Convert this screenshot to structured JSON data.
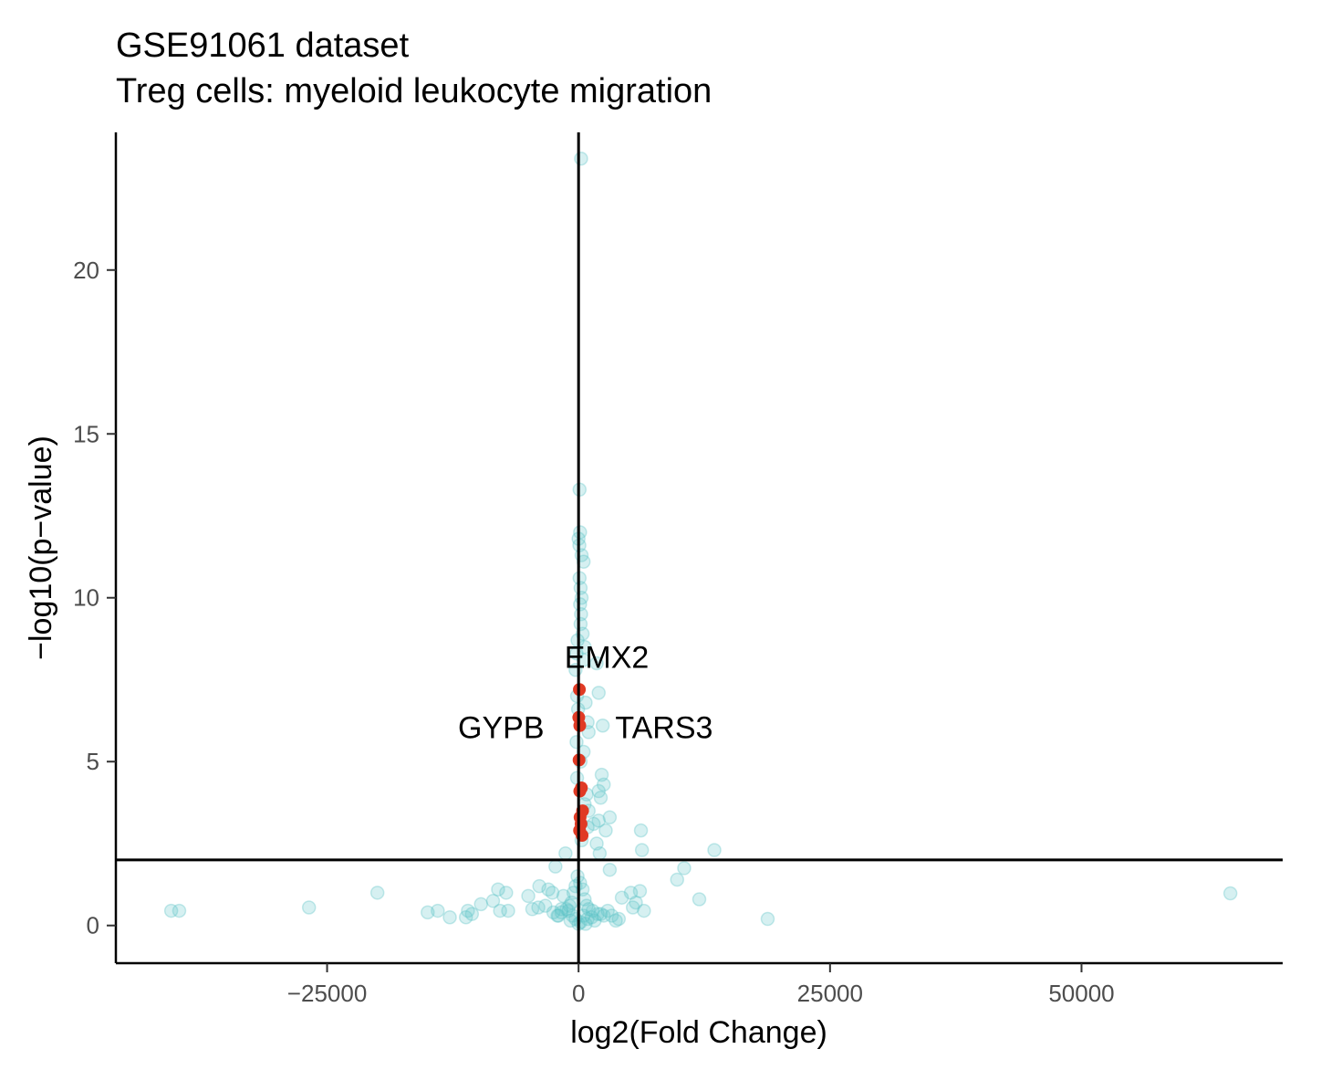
{
  "chart_data": {
    "type": "scatter",
    "title": "GSE91061 dataset",
    "subtitle": "Treg cells: myeloid leukocyte migration",
    "xlabel": "log2(Fold Change)",
    "ylabel": "−log10(p−value)",
    "xlim": [
      -46000,
      70000
    ],
    "ylim": [
      -1.15,
      24.2
    ],
    "x_ticks": [
      -25000,
      0,
      25000,
      50000
    ],
    "x_tick_labels": [
      "−25000",
      "0",
      "25000",
      "50000"
    ],
    "y_ticks": [
      0,
      5,
      10,
      15,
      20
    ],
    "y_tick_labels": [
      "0",
      "5",
      "10",
      "15",
      "20"
    ],
    "grid": false,
    "reference_lines": {
      "vertical_x": 0,
      "horizontal_y": 2
    },
    "colors": {
      "background_points": "#5bc2c6",
      "highlight_points": "#e03a24",
      "axes": "#000000"
    },
    "series": [
      {
        "style": "background",
        "points": [
          [
            250,
            23.4
          ],
          [
            100,
            13.3
          ],
          [
            150,
            12.0
          ],
          [
            0,
            11.8
          ],
          [
            80,
            11.6
          ],
          [
            300,
            11.3
          ],
          [
            500,
            11.1
          ],
          [
            100,
            10.6
          ],
          [
            200,
            10.3
          ],
          [
            300,
            10.0
          ],
          [
            150,
            9.8
          ],
          [
            250,
            9.5
          ],
          [
            200,
            9.2
          ],
          [
            400,
            8.9
          ],
          [
            -100,
            8.7
          ],
          [
            600,
            8.5
          ],
          [
            -200,
            8.3
          ],
          [
            500,
            8.1
          ],
          [
            1800,
            8.0
          ],
          [
            -300,
            7.8
          ],
          [
            2000,
            7.1
          ],
          [
            -150,
            7.0
          ],
          [
            700,
            6.8
          ],
          [
            -50,
            6.6
          ],
          [
            900,
            6.2
          ],
          [
            2400,
            6.1
          ],
          [
            1000,
            5.9
          ],
          [
            -200,
            5.6
          ],
          [
            500,
            5.3
          ],
          [
            200,
            5.0
          ],
          [
            2300,
            4.6
          ],
          [
            -150,
            4.5
          ],
          [
            2500,
            4.3
          ],
          [
            2000,
            4.1
          ],
          [
            800,
            4.0
          ],
          [
            2200,
            3.9
          ],
          [
            600,
            3.7
          ],
          [
            1000,
            3.5
          ],
          [
            3100,
            3.3
          ],
          [
            2000,
            3.2
          ],
          [
            1500,
            3.1
          ],
          [
            900,
            3.0
          ],
          [
            2700,
            2.9
          ],
          [
            6200,
            2.9
          ],
          [
            300,
            2.6
          ],
          [
            1800,
            2.5
          ],
          [
            -1300,
            2.2
          ],
          [
            2100,
            2.2
          ],
          [
            6300,
            2.3
          ],
          [
            13500,
            2.3
          ],
          [
            -2300,
            1.8
          ],
          [
            3100,
            1.7
          ],
          [
            10500,
            1.75
          ],
          [
            9800,
            1.4
          ],
          [
            -3900,
            1.2
          ],
          [
            -3000,
            1.1
          ],
          [
            -2600,
            1.0
          ],
          [
            5200,
            1.0
          ],
          [
            6100,
            1.05
          ],
          [
            -20000,
            1.0
          ],
          [
            -8000,
            1.1
          ],
          [
            -7200,
            1.0
          ],
          [
            -5000,
            0.9
          ],
          [
            -1500,
            0.9
          ],
          [
            4300,
            0.85
          ],
          [
            5700,
            0.7
          ],
          [
            12000,
            0.8
          ],
          [
            64800,
            0.98
          ],
          [
            -8500,
            0.75
          ],
          [
            -9700,
            0.65
          ],
          [
            -11000,
            0.45
          ],
          [
            -10600,
            0.35
          ],
          [
            -12800,
            0.25
          ],
          [
            -11200,
            0.25
          ],
          [
            -15000,
            0.4
          ],
          [
            -14000,
            0.45
          ],
          [
            -26800,
            0.55
          ],
          [
            -40500,
            0.45
          ],
          [
            -39700,
            0.45
          ],
          [
            -7800,
            0.45
          ],
          [
            -7000,
            0.45
          ],
          [
            -4600,
            0.5
          ],
          [
            -4000,
            0.55
          ],
          [
            -3300,
            0.6
          ],
          [
            -2500,
            0.4
          ],
          [
            -2000,
            0.3
          ],
          [
            -1700,
            0.5
          ],
          [
            -1000,
            0.45
          ],
          [
            -600,
            0.3
          ],
          [
            -300,
            0.2
          ],
          [
            0,
            0.05
          ],
          [
            200,
            0.1
          ],
          [
            500,
            0.3
          ],
          [
            900,
            0.2
          ],
          [
            1300,
            0.25
          ],
          [
            1600,
            0.15
          ],
          [
            2200,
            0.35
          ],
          [
            2900,
            0.45
          ],
          [
            3300,
            0.3
          ],
          [
            3700,
            0.15
          ],
          [
            4000,
            0.2
          ],
          [
            5400,
            0.55
          ],
          [
            6500,
            0.45
          ],
          [
            18800,
            0.2
          ],
          [
            -100,
            1.5
          ],
          [
            150,
            1.3
          ],
          [
            -300,
            1.2
          ],
          [
            400,
            1.1
          ],
          [
            -500,
            1.0
          ],
          [
            600,
            0.8
          ],
          [
            -700,
            0.7
          ],
          [
            800,
            0.6
          ],
          [
            -900,
            0.6
          ],
          [
            1000,
            0.5
          ],
          [
            -1200,
            0.5
          ],
          [
            1400,
            0.45
          ],
          [
            -1700,
            0.4
          ],
          [
            1900,
            0.35
          ],
          [
            -2100,
            0.3
          ],
          [
            2500,
            0.3
          ],
          [
            -800,
            0.15
          ],
          [
            700,
            0.05
          ]
        ]
      },
      {
        "style": "highlight",
        "points": [
          [
            80,
            7.2
          ],
          [
            20,
            6.35
          ],
          [
            120,
            6.1
          ],
          [
            50,
            5.05
          ],
          [
            280,
            4.2
          ],
          [
            120,
            4.1
          ],
          [
            400,
            3.5
          ],
          [
            150,
            3.3
          ],
          [
            250,
            3.1
          ],
          [
            100,
            2.9
          ],
          [
            350,
            2.75
          ]
        ]
      }
    ],
    "annotations": [
      {
        "label": "EMX2",
        "x": 2800,
        "y": 8.2
      },
      {
        "label": "GYPB",
        "x": -7700,
        "y": 6.05
      },
      {
        "label": "TARS3",
        "x": 8500,
        "y": 6.05
      }
    ]
  }
}
